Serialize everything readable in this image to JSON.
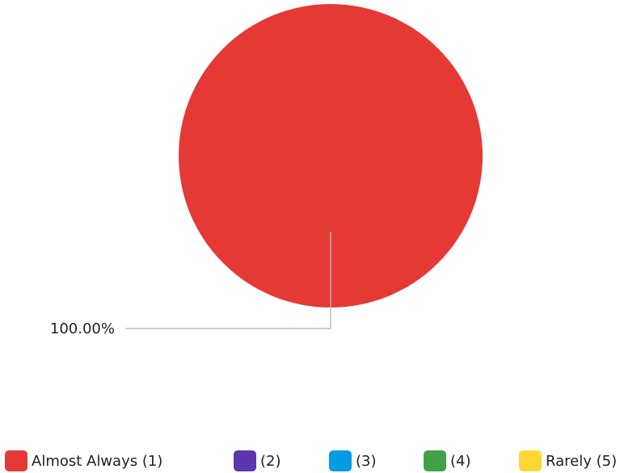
{
  "chart_data": {
    "type": "pie",
    "series": [
      {
        "name": "Almost Always (1)",
        "value": 100.0,
        "label": "100.00%",
        "color": "#e53935"
      },
      {
        "name": "(2)",
        "value": 0,
        "label": "",
        "color": "#5e35b1"
      },
      {
        "name": "(3)",
        "value": 0,
        "label": "",
        "color": "#039be5"
      },
      {
        "name": "(4)",
        "value": 0,
        "label": "",
        "color": "#43a047"
      },
      {
        "name": "Rarely (5)",
        "value": 0,
        "label": "",
        "color": "#fdd835"
      }
    ],
    "legend_position": "bottom"
  }
}
